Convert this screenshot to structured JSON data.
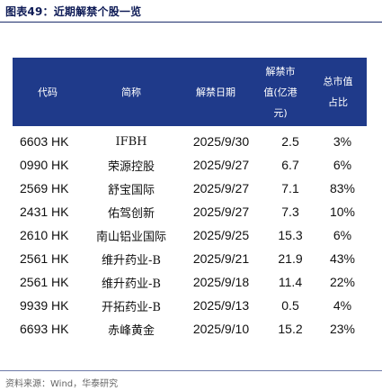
{
  "title": "图表49：近期解禁个股一览",
  "table": {
    "headers": [
      "代码",
      "简称",
      "解禁日期",
      "解禁市值(亿港元)",
      "总市值占比"
    ],
    "header_lines": {
      "code": [
        "代码"
      ],
      "name": [
        "简称"
      ],
      "date": [
        "解禁日期"
      ],
      "value": [
        "解禁市",
        "值(亿港",
        "元)"
      ],
      "ratio": [
        "总市值",
        "占比"
      ]
    },
    "rows": [
      {
        "code": "6603 HK",
        "name": "IFBH",
        "date": "2025/9/30",
        "value": "2.5",
        "ratio": "3%"
      },
      {
        "code": "0990 HK",
        "name": "荣源控股",
        "date": "2025/9/27",
        "value": "6.7",
        "ratio": "6%"
      },
      {
        "code": "2569 HK",
        "name": "舒宝国际",
        "date": "2025/9/27",
        "value": "7.1",
        "ratio": "83%"
      },
      {
        "code": "2431 HK",
        "name": "佑驾创新",
        "date": "2025/9/27",
        "value": "7.3",
        "ratio": "10%"
      },
      {
        "code": "2610 HK",
        "name": "南山铝业国际",
        "date": "2025/9/25",
        "value": "15.3",
        "ratio": "6%"
      },
      {
        "code": "2561 HK",
        "name": "维升药业-B",
        "date": "2025/9/21",
        "value": "21.9",
        "ratio": "43%"
      },
      {
        "code": "2561 HK",
        "name": "维升药业-B",
        "date": "2025/9/18",
        "value": "11.4",
        "ratio": "22%"
      },
      {
        "code": "9939 HK",
        "name": "开拓药业-B",
        "date": "2025/9/13",
        "value": "0.5",
        "ratio": "4%"
      },
      {
        "code": "6693 HK",
        "name": "赤峰黄金",
        "date": "2025/9/10",
        "value": "15.2",
        "ratio": "23%"
      }
    ]
  },
  "source": "资料来源：Wind，华泰研究"
}
